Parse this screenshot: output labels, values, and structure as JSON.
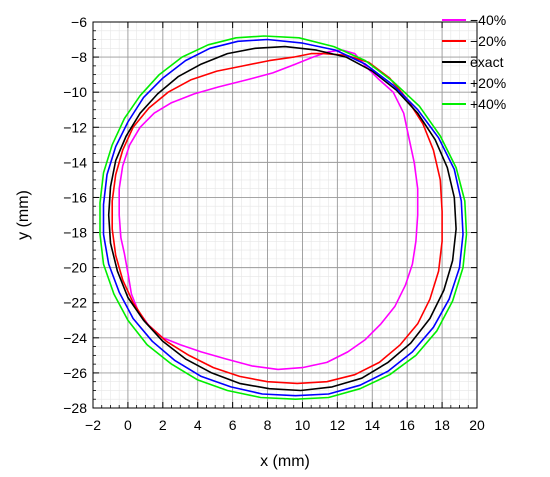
{
  "chart_data": {
    "type": "line",
    "xlabel": "x (mm)",
    "ylabel": "y (mm)",
    "xlim": [
      -2,
      20
    ],
    "ylim": [
      -28,
      -6
    ],
    "xticks": [
      -2,
      0,
      2,
      4,
      6,
      8,
      10,
      12,
      14,
      16,
      18,
      20
    ],
    "yticks": [
      -28,
      -26,
      -24,
      -22,
      -20,
      -18,
      -16,
      -14,
      -12,
      -10,
      -8,
      -6
    ],
    "xtick_labels": [
      "−2",
      "0",
      "2",
      "4",
      "6",
      "8",
      "10",
      "12",
      "14",
      "16",
      "18",
      "20"
    ],
    "ytick_labels": [
      "−28",
      "−26",
      "−24",
      "−22",
      "−20",
      "−18",
      "−16",
      "−14",
      "−12",
      "−10",
      "−8",
      "−6"
    ],
    "grid": true,
    "legend_position": "top-right",
    "series": [
      {
        "name": "−40%",
        "color": "#ff00ff",
        "points": [
          [
            12.3,
            -7.6
          ],
          [
            13.0,
            -7.8
          ],
          [
            13.6,
            -8.5
          ],
          [
            14.3,
            -9.2
          ],
          [
            15.2,
            -10.0
          ],
          [
            15.8,
            -11.2
          ],
          [
            16.1,
            -12.6
          ],
          [
            16.4,
            -14.0
          ],
          [
            16.6,
            -15.5
          ],
          [
            16.6,
            -17.0
          ],
          [
            16.5,
            -18.5
          ],
          [
            16.3,
            -19.8
          ],
          [
            15.9,
            -21.0
          ],
          [
            15.3,
            -22.2
          ],
          [
            14.5,
            -23.2
          ],
          [
            13.6,
            -24.1
          ],
          [
            12.6,
            -24.8
          ],
          [
            11.4,
            -25.4
          ],
          [
            10.0,
            -25.7
          ],
          [
            8.6,
            -25.8
          ],
          [
            7.1,
            -25.6
          ],
          [
            5.6,
            -25.2
          ],
          [
            4.2,
            -24.8
          ],
          [
            3.0,
            -24.4
          ],
          [
            2.0,
            -24.0
          ],
          [
            1.2,
            -23.3
          ],
          [
            0.6,
            -22.5
          ],
          [
            0.2,
            -21.5
          ],
          [
            0.0,
            -20.3
          ],
          [
            -0.2,
            -19.2
          ],
          [
            -0.4,
            -18.3
          ],
          [
            -0.5,
            -17.0
          ],
          [
            -0.5,
            -15.5
          ],
          [
            -0.3,
            -14.2
          ],
          [
            0.1,
            -13.0
          ],
          [
            0.7,
            -12.0
          ],
          [
            1.5,
            -11.2
          ],
          [
            2.5,
            -10.6
          ],
          [
            3.8,
            -10.1
          ],
          [
            5.2,
            -9.7
          ],
          [
            6.8,
            -9.3
          ],
          [
            8.3,
            -8.9
          ],
          [
            9.6,
            -8.4
          ],
          [
            10.6,
            -8.0
          ],
          [
            11.5,
            -7.7
          ],
          [
            12.3,
            -7.6
          ]
        ]
      },
      {
        "name": "−20%",
        "color": "#ff0000",
        "points": [
          [
            11.2,
            -7.8
          ],
          [
            12.5,
            -7.9
          ],
          [
            13.8,
            -8.3
          ],
          [
            15.0,
            -9.2
          ],
          [
            16.0,
            -10.4
          ],
          [
            16.9,
            -11.8
          ],
          [
            17.5,
            -13.3
          ],
          [
            17.9,
            -15.0
          ],
          [
            18.0,
            -16.8
          ],
          [
            18.0,
            -18.5
          ],
          [
            17.8,
            -20.2
          ],
          [
            17.3,
            -21.8
          ],
          [
            16.6,
            -23.2
          ],
          [
            15.6,
            -24.4
          ],
          [
            14.4,
            -25.4
          ],
          [
            13.0,
            -26.1
          ],
          [
            11.4,
            -26.5
          ],
          [
            9.7,
            -26.6
          ],
          [
            8.0,
            -26.5
          ],
          [
            6.4,
            -26.2
          ],
          [
            4.9,
            -25.7
          ],
          [
            3.5,
            -25.0
          ],
          [
            2.2,
            -24.2
          ],
          [
            1.1,
            -23.2
          ],
          [
            0.3,
            -22.0
          ],
          [
            -0.3,
            -20.7
          ],
          [
            -0.7,
            -19.3
          ],
          [
            -0.9,
            -17.8
          ],
          [
            -0.9,
            -16.2
          ],
          [
            -0.7,
            -14.7
          ],
          [
            -0.3,
            -13.3
          ],
          [
            0.3,
            -12.0
          ],
          [
            1.2,
            -10.9
          ],
          [
            2.3,
            -10.0
          ],
          [
            3.6,
            -9.3
          ],
          [
            5.1,
            -8.8
          ],
          [
            6.6,
            -8.5
          ],
          [
            8.1,
            -8.2
          ],
          [
            9.5,
            -8.0
          ],
          [
            10.5,
            -7.8
          ],
          [
            11.2,
            -7.8
          ]
        ]
      },
      {
        "name": "exact",
        "color": "#000000",
        "points": [
          [
            9.0,
            -7.4
          ],
          [
            10.8,
            -7.6
          ],
          [
            12.5,
            -8.0
          ],
          [
            14.0,
            -8.8
          ],
          [
            15.4,
            -9.9
          ],
          [
            16.6,
            -11.2
          ],
          [
            17.6,
            -12.7
          ],
          [
            18.3,
            -14.3
          ],
          [
            18.7,
            -16.0
          ],
          [
            18.8,
            -17.8
          ],
          [
            18.6,
            -19.6
          ],
          [
            18.1,
            -21.3
          ],
          [
            17.3,
            -22.9
          ],
          [
            16.2,
            -24.3
          ],
          [
            14.9,
            -25.4
          ],
          [
            13.4,
            -26.3
          ],
          [
            11.7,
            -26.8
          ],
          [
            9.9,
            -27.0
          ],
          [
            8.1,
            -26.9
          ],
          [
            6.4,
            -26.6
          ],
          [
            4.8,
            -26.0
          ],
          [
            3.3,
            -25.2
          ],
          [
            2.0,
            -24.2
          ],
          [
            0.9,
            -23.0
          ],
          [
            0.0,
            -21.7
          ],
          [
            -0.6,
            -20.2
          ],
          [
            -1.0,
            -18.6
          ],
          [
            -1.1,
            -17.0
          ],
          [
            -1.0,
            -15.4
          ],
          [
            -0.7,
            -13.9
          ],
          [
            -0.1,
            -12.5
          ],
          [
            0.7,
            -11.2
          ],
          [
            1.7,
            -10.1
          ],
          [
            2.9,
            -9.1
          ],
          [
            4.2,
            -8.4
          ],
          [
            5.7,
            -7.8
          ],
          [
            7.3,
            -7.5
          ],
          [
            9.0,
            -7.4
          ]
        ]
      },
      {
        "name": "+20%",
        "color": "#0000ff",
        "points": [
          [
            8.0,
            -7.0
          ],
          [
            10.0,
            -7.2
          ],
          [
            11.9,
            -7.6
          ],
          [
            13.6,
            -8.4
          ],
          [
            15.2,
            -9.6
          ],
          [
            16.6,
            -11.0
          ],
          [
            17.8,
            -12.6
          ],
          [
            18.7,
            -14.4
          ],
          [
            19.1,
            -16.2
          ],
          [
            19.2,
            -18.1
          ],
          [
            19.0,
            -20.0
          ],
          [
            18.4,
            -21.8
          ],
          [
            17.5,
            -23.4
          ],
          [
            16.3,
            -24.8
          ],
          [
            14.9,
            -25.9
          ],
          [
            13.3,
            -26.7
          ],
          [
            11.5,
            -27.2
          ],
          [
            9.6,
            -27.3
          ],
          [
            7.7,
            -27.2
          ],
          [
            5.9,
            -26.8
          ],
          [
            4.2,
            -26.2
          ],
          [
            2.7,
            -25.3
          ],
          [
            1.4,
            -24.2
          ],
          [
            0.3,
            -22.9
          ],
          [
            -0.5,
            -21.4
          ],
          [
            -1.1,
            -19.8
          ],
          [
            -1.4,
            -18.1
          ],
          [
            -1.4,
            -16.4
          ],
          [
            -1.2,
            -14.7
          ],
          [
            -0.7,
            -13.1
          ],
          [
            0.0,
            -11.7
          ],
          [
            0.9,
            -10.3
          ],
          [
            2.0,
            -9.2
          ],
          [
            3.3,
            -8.2
          ],
          [
            4.7,
            -7.5
          ],
          [
            6.3,
            -7.1
          ],
          [
            8.0,
            -7.0
          ]
        ]
      },
      {
        "name": "+40%",
        "color": "#00ee00",
        "points": [
          [
            7.8,
            -6.8
          ],
          [
            9.8,
            -6.9
          ],
          [
            11.8,
            -7.4
          ],
          [
            13.6,
            -8.2
          ],
          [
            15.2,
            -9.4
          ],
          [
            16.7,
            -10.8
          ],
          [
            17.9,
            -12.5
          ],
          [
            18.8,
            -14.3
          ],
          [
            19.3,
            -16.2
          ],
          [
            19.4,
            -18.1
          ],
          [
            19.2,
            -20.0
          ],
          [
            18.6,
            -21.9
          ],
          [
            17.7,
            -23.6
          ],
          [
            16.5,
            -25.0
          ],
          [
            15.0,
            -26.1
          ],
          [
            13.3,
            -26.9
          ],
          [
            11.5,
            -27.4
          ],
          [
            9.6,
            -27.5
          ],
          [
            7.6,
            -27.4
          ],
          [
            5.7,
            -27.0
          ],
          [
            4.0,
            -26.4
          ],
          [
            2.5,
            -25.5
          ],
          [
            1.1,
            -24.4
          ],
          [
            0.0,
            -23.0
          ],
          [
            -0.8,
            -21.5
          ],
          [
            -1.4,
            -19.8
          ],
          [
            -1.6,
            -18.1
          ],
          [
            -1.6,
            -16.3
          ],
          [
            -1.4,
            -14.6
          ],
          [
            -0.9,
            -13.0
          ],
          [
            -0.2,
            -11.5
          ],
          [
            0.7,
            -10.2
          ],
          [
            1.8,
            -9.0
          ],
          [
            3.1,
            -8.0
          ],
          [
            4.6,
            -7.3
          ],
          [
            6.2,
            -6.9
          ],
          [
            7.8,
            -6.8
          ]
        ]
      }
    ]
  }
}
